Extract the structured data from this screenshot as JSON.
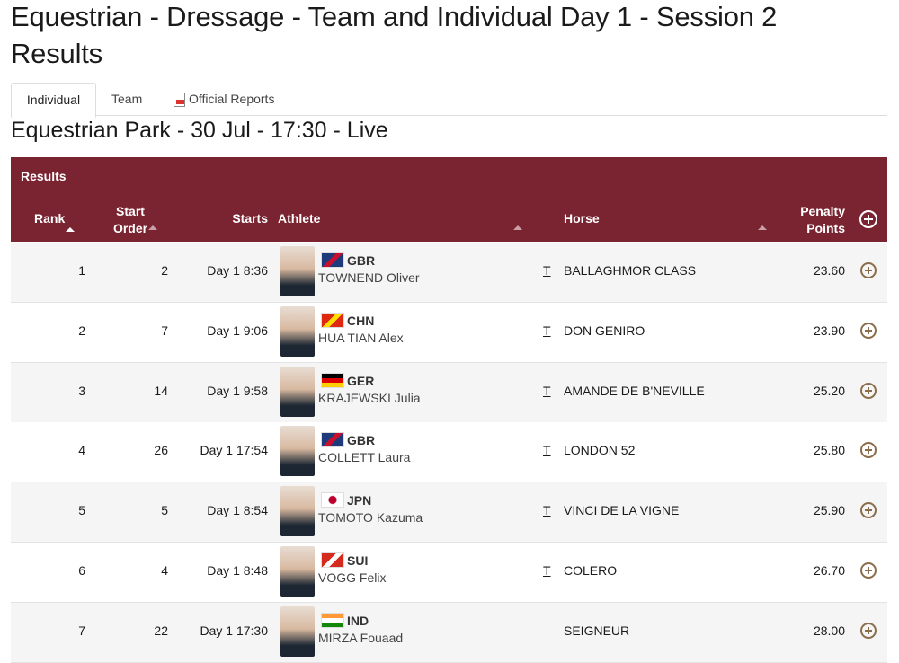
{
  "header": {
    "title_line1": "Equestrian - Dressage - Team and Individual Day 1 - Session 2",
    "title_line2": "Results"
  },
  "tabs": [
    "Individual",
    "Team",
    "Official Reports"
  ],
  "subtitle": "Equestrian Park - 30 Jul - 17:30 - Live",
  "table": {
    "caption": "Results",
    "columns": [
      "Rank",
      "Start Order",
      "Starts",
      "Athlete",
      "Horse",
      "Penalty Points"
    ],
    "rows": [
      {
        "rank": 1,
        "start_order": 2,
        "starts": "Day 1 8:36",
        "country": "GBR",
        "athlete": "TOWNEND Oliver",
        "marker": "T",
        "horse": "BALLAGHMOR CLASS",
        "points": "23.60"
      },
      {
        "rank": 2,
        "start_order": 7,
        "starts": "Day 1 9:06",
        "country": "CHN",
        "athlete": "HUA TIAN Alex",
        "marker": "T",
        "horse": "DON GENIRO",
        "points": "23.90"
      },
      {
        "rank": 3,
        "start_order": 14,
        "starts": "Day 1 9:58",
        "country": "GER",
        "athlete": "KRAJEWSKI Julia",
        "marker": "T",
        "horse": "AMANDE DE B'NEVILLE",
        "points": "25.20"
      },
      {
        "rank": 4,
        "start_order": 26,
        "starts": "Day 1 17:54",
        "country": "GBR",
        "athlete": "COLLETT Laura",
        "marker": "T",
        "horse": "LONDON 52",
        "points": "25.80"
      },
      {
        "rank": 5,
        "start_order": 5,
        "starts": "Day 1 8:54",
        "country": "JPN",
        "athlete": "TOMOTO Kazuma",
        "marker": "T",
        "horse": "VINCI DE LA VIGNE",
        "points": "25.90"
      },
      {
        "rank": 6,
        "start_order": 4,
        "starts": "Day 1 8:48",
        "country": "SUI",
        "athlete": "VOGG Felix",
        "marker": "T",
        "horse": "COLERO",
        "points": "26.70"
      },
      {
        "rank": 7,
        "start_order": 22,
        "starts": "Day 1 17:30",
        "country": "IND",
        "athlete": "MIRZA Fouaad",
        "horse": "SEIGNEUR",
        "points": "28.00"
      }
    ]
  }
}
